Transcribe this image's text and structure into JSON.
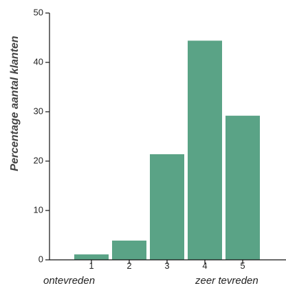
{
  "chart_data": {
    "type": "bar",
    "categories": [
      "1",
      "2",
      "3",
      "4",
      "5"
    ],
    "values": [
      1.1,
      3.9,
      21.4,
      44.4,
      29.2
    ],
    "title": "",
    "xlabel": "",
    "ylabel": "Percentage aantal klanten",
    "ylim": [
      0,
      50
    ],
    "yticks": [
      0,
      10,
      20,
      30,
      40,
      50
    ],
    "x_annotations": {
      "left": "ontevreden",
      "right": "zeer tevreden"
    },
    "grid": false,
    "bar_color": "#5aa386"
  }
}
